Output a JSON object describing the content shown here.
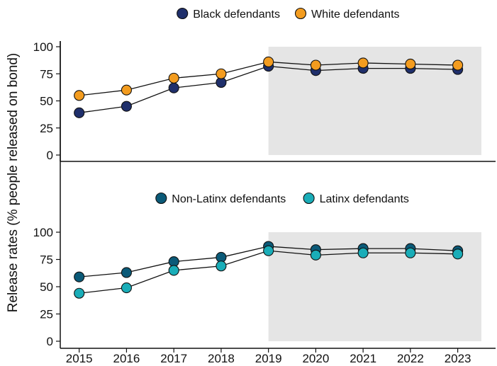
{
  "chart_data": {
    "ylabel": "Release rates (% people released on bond)",
    "x": [
      2015,
      2016,
      2017,
      2018,
      2019,
      2020,
      2021,
      2022,
      2023
    ],
    "x_tick_labels": [
      "2015",
      "2016",
      "2017",
      "2018",
      "2019",
      "2020",
      "2021",
      "2022",
      "2023"
    ],
    "shade_color": "#e5e5e5",
    "shaded_range_x": [
      2019,
      2023.5
    ],
    "panels": [
      {
        "type": "line",
        "legend_position": "top-center",
        "ylim": [
          0,
          100
        ],
        "y_ticks": [
          0,
          25,
          50,
          75,
          100
        ],
        "y_tick_labels": [
          "0",
          "25",
          "50",
          "75",
          "100"
        ],
        "series": [
          {
            "name": "Black defendants",
            "color": "#1f2f6b",
            "values": [
              39,
              45,
              62,
              67,
              82,
              78,
              80,
              80,
              79
            ]
          },
          {
            "name": "White defendants",
            "color": "#f39c1f",
            "values": [
              55,
              60,
              71,
              75,
              86,
              83,
              85,
              84,
              83
            ]
          }
        ]
      },
      {
        "type": "line",
        "legend_position": "top-center",
        "ylim": [
          0,
          100
        ],
        "y_ticks": [
          0,
          25,
          50,
          75,
          100
        ],
        "y_tick_labels": [
          "0",
          "25",
          "50",
          "75",
          "100"
        ],
        "series": [
          {
            "name": "Non-Latinx defendants",
            "color": "#0b5a78",
            "values": [
              59,
              63,
              73,
              77,
              87,
              84,
              85,
              85,
              83
            ]
          },
          {
            "name": "Latinx defendants",
            "color": "#1aadb8",
            "values": [
              44,
              49,
              65,
              69,
              83,
              79,
              81,
              81,
              80
            ]
          }
        ]
      }
    ]
  }
}
